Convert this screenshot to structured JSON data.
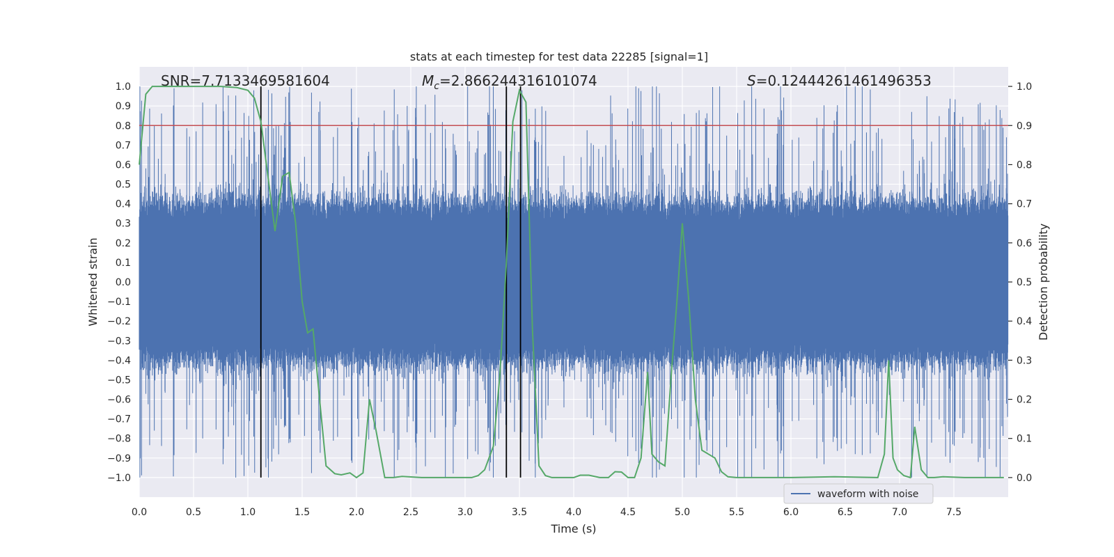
{
  "chart_data": {
    "type": "line",
    "title": "stats at each timestep for test data 22285 [signal=1]",
    "xlabel": "Time (s)",
    "ylabel_left": "Whitened strain",
    "ylabel_right": "Detection probability",
    "xlim": [
      0.0,
      8.0
    ],
    "ylim_left": [
      -1.1,
      1.1
    ],
    "ylim_right": [
      -0.05,
      1.05
    ],
    "x_ticks": [
      0.0,
      0.5,
      1.0,
      1.5,
      2.0,
      2.5,
      3.0,
      3.5,
      4.0,
      4.5,
      5.0,
      5.5,
      6.0,
      6.5,
      7.0,
      7.5
    ],
    "x_tick_labels": [
      "0.0",
      "0.5",
      "1.0",
      "1.5",
      "2.0",
      "2.5",
      "3.0",
      "3.5",
      "4.0",
      "4.5",
      "5.0",
      "5.5",
      "6.0",
      "6.5",
      "7.0",
      "7.5"
    ],
    "y_left_ticks": [
      1.0,
      0.9,
      0.8,
      0.7,
      0.6,
      0.5,
      0.4,
      0.3,
      0.2,
      0.1,
      0.0,
      -0.1,
      -0.2,
      -0.3,
      -0.4,
      -0.5,
      -0.6,
      -0.7,
      -0.8,
      -0.9,
      -1.0
    ],
    "y_left_tick_labels": [
      "1.0",
      "0.9",
      "0.8",
      "0.7",
      "0.6",
      "0.5",
      "0.4",
      "0.3",
      "0.2",
      "0.1",
      "0.0",
      "−0.1",
      "−0.2",
      "−0.3",
      "−0.4",
      "−0.5",
      "−0.6",
      "−0.7",
      "−0.8",
      "−0.9",
      "−1.0"
    ],
    "y_right_ticks": [
      1.0,
      0.9,
      0.8,
      0.7,
      0.6,
      0.5,
      0.4,
      0.3,
      0.2,
      0.1,
      0.0
    ],
    "y_right_tick_labels": [
      "1.0",
      "0.9",
      "0.8",
      "0.7",
      "0.6",
      "0.5",
      "0.4",
      "0.3",
      "0.2",
      "0.1",
      "0.0"
    ],
    "annotations": {
      "snr": "SNR=7.7133469581604",
      "mc_symbol": "M",
      "mc_sub": "c",
      "mc_value": "=2.866244316101074",
      "s_symbol": "S",
      "s_value": "=0.12444261461496353"
    },
    "threshold_line": {
      "axis": "left",
      "y": 0.8,
      "color": "#c44e52"
    },
    "vertical_lines": [
      1.12,
      3.38,
      3.51
    ],
    "legend": {
      "label": "waveform with noise",
      "position": "lower right"
    },
    "series": [
      {
        "name": "waveform with noise",
        "axis": "left",
        "color": "#4c72b0",
        "style": "dense noisy strain, amplitude about 0.4 with spikes up to about 1.0, seeded generation",
        "seed": 22285,
        "n_samples": 4096
      },
      {
        "name": "detection probability",
        "axis": "right",
        "color": "#55a868",
        "x": [
          0.0,
          0.06,
          0.12,
          0.25,
          0.5,
          0.75,
          0.9,
          1.0,
          1.06,
          1.12,
          1.18,
          1.25,
          1.32,
          1.38,
          1.44,
          1.5,
          1.55,
          1.6,
          1.66,
          1.72,
          1.8,
          1.86,
          1.94,
          2.0,
          2.06,
          2.12,
          2.18,
          2.26,
          2.34,
          2.42,
          2.6,
          3.0,
          3.06,
          3.12,
          3.18,
          3.26,
          3.32,
          3.38,
          3.44,
          3.5,
          3.56,
          3.62,
          3.68,
          3.74,
          3.8,
          3.9,
          4.0,
          4.06,
          4.14,
          4.24,
          4.32,
          4.38,
          4.44,
          4.5,
          4.56,
          4.62,
          4.68,
          4.72,
          4.78,
          4.84,
          4.9,
          4.95,
          5.0,
          5.06,
          5.12,
          5.18,
          5.24,
          5.3,
          5.36,
          5.42,
          5.5,
          5.7,
          6.0,
          6.4,
          6.8,
          6.86,
          6.9,
          6.94,
          6.98,
          7.04,
          7.1,
          7.14,
          7.2,
          7.26,
          7.32,
          7.4,
          7.6,
          7.8,
          7.96
        ],
        "y": [
          0.8,
          0.98,
          1.0,
          1.0,
          1.0,
          1.0,
          0.997,
          0.99,
          0.97,
          0.91,
          0.78,
          0.63,
          0.77,
          0.78,
          0.65,
          0.45,
          0.37,
          0.38,
          0.2,
          0.03,
          0.01,
          0.007,
          0.012,
          0.0,
          0.012,
          0.2,
          0.12,
          0.0,
          0.0,
          0.003,
          0.0,
          0.0,
          0.0,
          0.005,
          0.02,
          0.08,
          0.26,
          0.55,
          0.91,
          0.99,
          0.96,
          0.38,
          0.03,
          0.005,
          0.0,
          0.0,
          0.0,
          0.006,
          0.006,
          0.0,
          0.0,
          0.015,
          0.014,
          0.0,
          0.0,
          0.05,
          0.27,
          0.06,
          0.04,
          0.03,
          0.27,
          0.45,
          0.65,
          0.45,
          0.2,
          0.07,
          0.06,
          0.05,
          0.015,
          0.002,
          0.0,
          0.0,
          0.0,
          0.002,
          0.0,
          0.06,
          0.3,
          0.05,
          0.02,
          0.005,
          0.0,
          0.13,
          0.02,
          0.0,
          0.0,
          0.002,
          0.0,
          0.0,
          0.0
        ]
      }
    ]
  }
}
